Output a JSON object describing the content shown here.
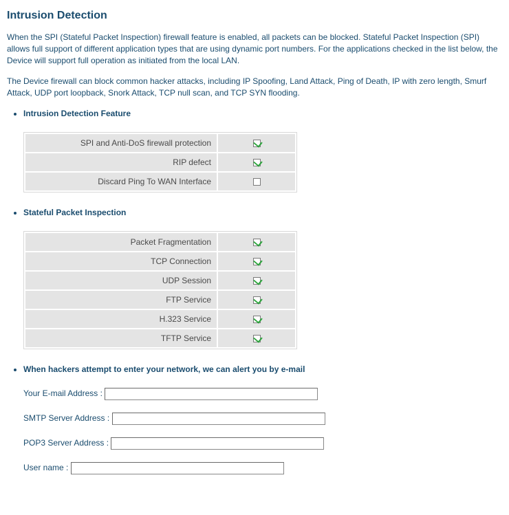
{
  "title": "Intrusion Detection",
  "intro1": "When the SPI (Stateful Packet Inspection) firewall feature is enabled, all packets can be blocked.  Stateful Packet Inspection (SPI) allows full support of different application types that are using dynamic port numbers.  For the applications checked in the list below, the Device will support full operation as initiated from the local LAN.",
  "intro2": "The Device firewall can block common hacker attacks, including IP Spoofing, Land Attack, Ping of Death, IP with zero length, Smurf Attack, UDP port loopback, Snork Attack, TCP null scan, and TCP SYN flooding.",
  "section1": {
    "heading": "Intrusion Detection Feature",
    "rows": [
      {
        "label": "SPI and Anti-DoS firewall protection",
        "checked": true
      },
      {
        "label": "RIP defect",
        "checked": true
      },
      {
        "label": "Discard Ping To WAN Interface",
        "checked": false
      }
    ]
  },
  "section2": {
    "heading": "Stateful Packet Inspection",
    "rows": [
      {
        "label": "Packet Fragmentation",
        "checked": true
      },
      {
        "label": "TCP Connection",
        "checked": true
      },
      {
        "label": "UDP Session",
        "checked": true
      },
      {
        "label": "FTP Service",
        "checked": true
      },
      {
        "label": "H.323 Service",
        "checked": true
      },
      {
        "label": "TFTP  Service",
        "checked": true
      }
    ]
  },
  "section3": {
    "heading": "When hackers attempt to enter your network, we can alert you by e-mail",
    "fields": {
      "email_label": "Your E-mail Address :",
      "email_value": "",
      "smtp_label": "SMTP Server Address :",
      "smtp_value": "",
      "pop3_label": "POP3 Server Address :",
      "pop3_value": "",
      "user_label": "User name :",
      "user_value": ""
    }
  },
  "colors": {
    "text": "#1a4c6e",
    "cell_bg": "#e4e4e4",
    "check_green": "#2aa53a"
  }
}
